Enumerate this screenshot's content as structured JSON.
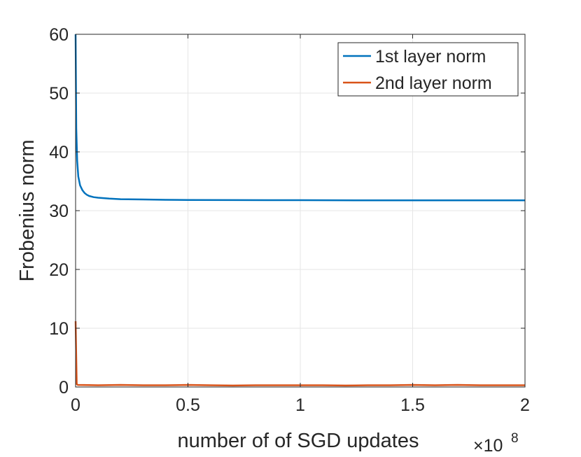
{
  "chart_data": {
    "type": "line",
    "xlabel": "number of of SGD updates",
    "ylabel": "Frobenius norm",
    "x_exponent_prefix": "×10",
    "x_exponent_power": "8",
    "xlim": [
      0,
      2
    ],
    "ylim": [
      0,
      60
    ],
    "x_ticks": [
      0,
      0.5,
      1,
      1.5,
      2
    ],
    "x_tick_labels": [
      "0",
      "0.5",
      "1",
      "1.5",
      "2"
    ],
    "y_ticks": [
      0,
      10,
      20,
      30,
      40,
      50,
      60
    ],
    "y_tick_labels": [
      "0",
      "10",
      "20",
      "30",
      "40",
      "50",
      "60"
    ],
    "grid": true,
    "legend_position": "top-right",
    "series": [
      {
        "name": "1st layer norm",
        "color": "#0072BD",
        "x": [
          0,
          0.003,
          0.007,
          0.012,
          0.02,
          0.03,
          0.04,
          0.05,
          0.06,
          0.08,
          0.1,
          0.15,
          0.2,
          0.3,
          0.4,
          0.5,
          0.7,
          1.0,
          1.3,
          1.6,
          2.0
        ],
        "y": [
          60,
          44,
          38.5,
          35.8,
          34.3,
          33.5,
          33.0,
          32.7,
          32.5,
          32.3,
          32.2,
          32.05,
          31.95,
          31.9,
          31.85,
          31.82,
          31.8,
          31.78,
          31.76,
          31.75,
          31.75
        ]
      },
      {
        "name": "2nd layer norm",
        "color": "#D95319",
        "x": [
          0,
          0.005,
          0.01,
          0.1,
          0.2,
          0.3,
          0.4,
          0.5,
          0.6,
          0.7,
          0.8,
          0.9,
          1.0,
          1.1,
          1.2,
          1.3,
          1.4,
          1.5,
          1.6,
          1.7,
          1.8,
          1.9,
          2.0
        ],
        "y": [
          11.2,
          0.5,
          0.35,
          0.3,
          0.35,
          0.3,
          0.3,
          0.35,
          0.3,
          0.25,
          0.3,
          0.3,
          0.3,
          0.3,
          0.25,
          0.3,
          0.3,
          0.35,
          0.3,
          0.35,
          0.3,
          0.3,
          0.3
        ]
      }
    ]
  }
}
